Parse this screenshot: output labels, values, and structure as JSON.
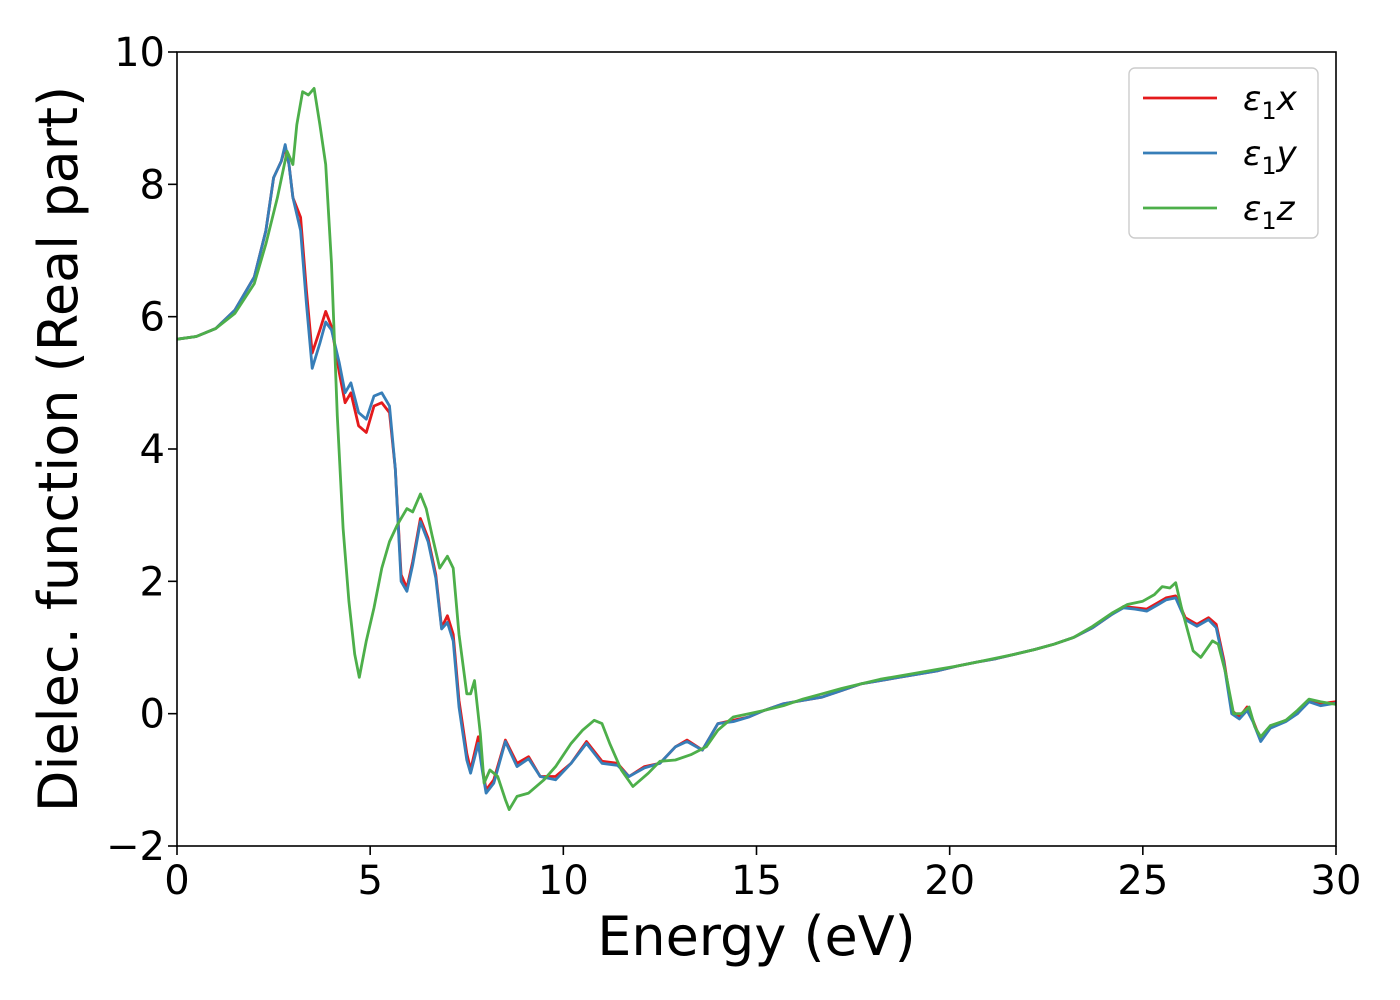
{
  "chart_data": {
    "type": "line",
    "title": "",
    "xlabel": "Energy (eV)",
    "ylabel": "Dielec. function (Real part)",
    "xlim": [
      0,
      30
    ],
    "ylim": [
      -2,
      10
    ],
    "xticks": [
      0,
      5,
      10,
      15,
      20,
      25,
      30
    ],
    "xtick_labels": [
      "0",
      "5",
      "10",
      "15",
      "20",
      "25",
      "30"
    ],
    "yticks": [
      -2,
      0,
      2,
      4,
      6,
      8,
      10
    ],
    "ytick_labels": [
      "−2",
      "0",
      "2",
      "4",
      "6",
      "8",
      "10"
    ],
    "grid": false,
    "legend_position": "top-right",
    "series": [
      {
        "name": "ε1x",
        "color": "#e41a1c",
        "points": [
          [
            0,
            5.66
          ],
          [
            0.5,
            5.7
          ],
          [
            1,
            5.82
          ],
          [
            1.5,
            6.1
          ],
          [
            2,
            6.6
          ],
          [
            2.3,
            7.3
          ],
          [
            2.5,
            8.1
          ],
          [
            2.7,
            8.35
          ],
          [
            2.8,
            8.55
          ],
          [
            2.9,
            8.3
          ],
          [
            3.0,
            7.8
          ],
          [
            3.2,
            7.5
          ],
          [
            3.35,
            6.4
          ],
          [
            3.5,
            5.45
          ],
          [
            3.7,
            5.8
          ],
          [
            3.85,
            6.08
          ],
          [
            4.0,
            5.85
          ],
          [
            4.2,
            5.15
          ],
          [
            4.35,
            4.7
          ],
          [
            4.5,
            4.85
          ],
          [
            4.7,
            4.35
          ],
          [
            4.9,
            4.25
          ],
          [
            5.1,
            4.65
          ],
          [
            5.3,
            4.7
          ],
          [
            5.5,
            4.55
          ],
          [
            5.65,
            3.7
          ],
          [
            5.8,
            2.1
          ],
          [
            5.95,
            1.9
          ],
          [
            6.1,
            2.3
          ],
          [
            6.3,
            2.95
          ],
          [
            6.5,
            2.65
          ],
          [
            6.7,
            2.1
          ],
          [
            6.85,
            1.3
          ],
          [
            7.0,
            1.48
          ],
          [
            7.15,
            1.2
          ],
          [
            7.3,
            0.2
          ],
          [
            7.5,
            -0.6
          ],
          [
            7.6,
            -0.85
          ],
          [
            7.8,
            -0.35
          ],
          [
            7.9,
            -0.8
          ],
          [
            8.0,
            -1.15
          ],
          [
            8.2,
            -1.0
          ],
          [
            8.5,
            -0.4
          ],
          [
            8.8,
            -0.75
          ],
          [
            9.1,
            -0.65
          ],
          [
            9.4,
            -0.95
          ],
          [
            9.8,
            -0.95
          ],
          [
            10.2,
            -0.75
          ],
          [
            10.6,
            -0.42
          ],
          [
            11.0,
            -0.72
          ],
          [
            11.4,
            -0.75
          ],
          [
            11.7,
            -0.95
          ],
          [
            12.1,
            -0.8
          ],
          [
            12.5,
            -0.75
          ],
          [
            12.9,
            -0.5
          ],
          [
            13.2,
            -0.4
          ],
          [
            13.6,
            -0.55
          ],
          [
            14.0,
            -0.15
          ],
          [
            14.4,
            -0.1
          ],
          [
            14.8,
            -0.05
          ],
          [
            15.2,
            0.05
          ],
          [
            15.7,
            0.15
          ],
          [
            16.2,
            0.2
          ],
          [
            16.7,
            0.25
          ],
          [
            17.2,
            0.35
          ],
          [
            17.7,
            0.45
          ],
          [
            18.2,
            0.5
          ],
          [
            18.7,
            0.55
          ],
          [
            19.2,
            0.6
          ],
          [
            19.7,
            0.65
          ],
          [
            20.2,
            0.72
          ],
          [
            20.7,
            0.78
          ],
          [
            21.2,
            0.83
          ],
          [
            21.7,
            0.9
          ],
          [
            22.2,
            0.97
          ],
          [
            22.7,
            1.05
          ],
          [
            23.2,
            1.15
          ],
          [
            23.7,
            1.3
          ],
          [
            24.2,
            1.5
          ],
          [
            24.5,
            1.62
          ],
          [
            24.8,
            1.6
          ],
          [
            25.1,
            1.58
          ],
          [
            25.4,
            1.68
          ],
          [
            25.6,
            1.75
          ],
          [
            25.85,
            1.78
          ],
          [
            26.1,
            1.45
          ],
          [
            26.4,
            1.35
          ],
          [
            26.7,
            1.45
          ],
          [
            26.9,
            1.35
          ],
          [
            27.1,
            0.8
          ],
          [
            27.3,
            0.05
          ],
          [
            27.5,
            -0.05
          ],
          [
            27.7,
            0.1
          ],
          [
            27.85,
            -0.1
          ],
          [
            28.05,
            -0.4
          ],
          [
            28.3,
            -0.2
          ],
          [
            28.7,
            -0.1
          ],
          [
            29.0,
            0.0
          ],
          [
            29.3,
            0.2
          ],
          [
            29.6,
            0.15
          ],
          [
            30,
            0.18
          ]
        ]
      },
      {
        "name": "ε1y",
        "color": "#377eb8",
        "points": [
          [
            0,
            5.66
          ],
          [
            0.5,
            5.7
          ],
          [
            1,
            5.82
          ],
          [
            1.5,
            6.1
          ],
          [
            2,
            6.6
          ],
          [
            2.3,
            7.3
          ],
          [
            2.5,
            8.1
          ],
          [
            2.7,
            8.35
          ],
          [
            2.8,
            8.6
          ],
          [
            2.9,
            8.3
          ],
          [
            3.0,
            7.8
          ],
          [
            3.2,
            7.3
          ],
          [
            3.35,
            6.2
          ],
          [
            3.5,
            5.22
          ],
          [
            3.7,
            5.6
          ],
          [
            3.85,
            5.92
          ],
          [
            4.0,
            5.8
          ],
          [
            4.2,
            5.3
          ],
          [
            4.35,
            4.85
          ],
          [
            4.5,
            5.0
          ],
          [
            4.7,
            4.55
          ],
          [
            4.9,
            4.45
          ],
          [
            5.1,
            4.8
          ],
          [
            5.3,
            4.85
          ],
          [
            5.5,
            4.65
          ],
          [
            5.65,
            3.7
          ],
          [
            5.8,
            2.0
          ],
          [
            5.95,
            1.85
          ],
          [
            6.1,
            2.25
          ],
          [
            6.3,
            2.9
          ],
          [
            6.5,
            2.6
          ],
          [
            6.7,
            2.05
          ],
          [
            6.85,
            1.28
          ],
          [
            7.0,
            1.38
          ],
          [
            7.15,
            1.1
          ],
          [
            7.3,
            0.1
          ],
          [
            7.5,
            -0.7
          ],
          [
            7.6,
            -0.9
          ],
          [
            7.8,
            -0.45
          ],
          [
            7.9,
            -0.85
          ],
          [
            8.0,
            -1.2
          ],
          [
            8.2,
            -1.05
          ],
          [
            8.5,
            -0.42
          ],
          [
            8.8,
            -0.8
          ],
          [
            9.1,
            -0.68
          ],
          [
            9.4,
            -0.95
          ],
          [
            9.8,
            -1.0
          ],
          [
            10.2,
            -0.75
          ],
          [
            10.6,
            -0.45
          ],
          [
            11.0,
            -0.75
          ],
          [
            11.4,
            -0.78
          ],
          [
            11.7,
            -0.95
          ],
          [
            12.1,
            -0.82
          ],
          [
            12.5,
            -0.75
          ],
          [
            12.9,
            -0.5
          ],
          [
            13.2,
            -0.42
          ],
          [
            13.6,
            -0.55
          ],
          [
            14.0,
            -0.15
          ],
          [
            14.4,
            -0.12
          ],
          [
            14.8,
            -0.05
          ],
          [
            15.2,
            0.05
          ],
          [
            15.7,
            0.15
          ],
          [
            16.2,
            0.2
          ],
          [
            16.7,
            0.25
          ],
          [
            17.2,
            0.35
          ],
          [
            17.7,
            0.45
          ],
          [
            18.2,
            0.5
          ],
          [
            18.7,
            0.55
          ],
          [
            19.2,
            0.6
          ],
          [
            19.7,
            0.65
          ],
          [
            20.2,
            0.72
          ],
          [
            20.7,
            0.78
          ],
          [
            21.2,
            0.83
          ],
          [
            21.7,
            0.9
          ],
          [
            22.2,
            0.97
          ],
          [
            22.7,
            1.05
          ],
          [
            23.2,
            1.15
          ],
          [
            23.7,
            1.3
          ],
          [
            24.2,
            1.5
          ],
          [
            24.5,
            1.6
          ],
          [
            24.8,
            1.58
          ],
          [
            25.1,
            1.55
          ],
          [
            25.4,
            1.65
          ],
          [
            25.6,
            1.72
          ],
          [
            25.85,
            1.75
          ],
          [
            26.1,
            1.42
          ],
          [
            26.4,
            1.32
          ],
          [
            26.7,
            1.42
          ],
          [
            26.9,
            1.3
          ],
          [
            27.1,
            0.75
          ],
          [
            27.3,
            0.0
          ],
          [
            27.5,
            -0.08
          ],
          [
            27.7,
            0.05
          ],
          [
            27.85,
            -0.12
          ],
          [
            28.05,
            -0.42
          ],
          [
            28.3,
            -0.22
          ],
          [
            28.7,
            -0.12
          ],
          [
            29.0,
            0.0
          ],
          [
            29.3,
            0.18
          ],
          [
            29.6,
            0.12
          ],
          [
            30,
            0.16
          ]
        ]
      },
      {
        "name": "ε1z",
        "color": "#4daf4a",
        "points": [
          [
            0,
            5.66
          ],
          [
            0.5,
            5.7
          ],
          [
            1,
            5.82
          ],
          [
            1.5,
            6.05
          ],
          [
            2,
            6.5
          ],
          [
            2.3,
            7.1
          ],
          [
            2.6,
            7.8
          ],
          [
            2.85,
            8.5
          ],
          [
            3.0,
            8.3
          ],
          [
            3.1,
            8.9
          ],
          [
            3.25,
            9.4
          ],
          [
            3.4,
            9.35
          ],
          [
            3.55,
            9.45
          ],
          [
            3.7,
            8.9
          ],
          [
            3.85,
            8.3
          ],
          [
            4.0,
            6.8
          ],
          [
            4.15,
            4.5
          ],
          [
            4.3,
            2.8
          ],
          [
            4.45,
            1.7
          ],
          [
            4.6,
            0.9
          ],
          [
            4.72,
            0.55
          ],
          [
            4.9,
            1.1
          ],
          [
            5.1,
            1.6
          ],
          [
            5.3,
            2.2
          ],
          [
            5.5,
            2.6
          ],
          [
            5.7,
            2.85
          ],
          [
            5.95,
            3.1
          ],
          [
            6.1,
            3.05
          ],
          [
            6.3,
            3.32
          ],
          [
            6.45,
            3.1
          ],
          [
            6.6,
            2.7
          ],
          [
            6.8,
            2.2
          ],
          [
            7.0,
            2.38
          ],
          [
            7.15,
            2.2
          ],
          [
            7.3,
            1.2
          ],
          [
            7.5,
            0.3
          ],
          [
            7.6,
            0.3
          ],
          [
            7.7,
            0.5
          ],
          [
            7.85,
            -0.3
          ],
          [
            7.95,
            -1.05
          ],
          [
            8.1,
            -0.85
          ],
          [
            8.3,
            -0.95
          ],
          [
            8.5,
            -1.3
          ],
          [
            8.6,
            -1.45
          ],
          [
            8.8,
            -1.25
          ],
          [
            9.1,
            -1.2
          ],
          [
            9.5,
            -1.0
          ],
          [
            9.8,
            -0.8
          ],
          [
            10.2,
            -0.45
          ],
          [
            10.5,
            -0.25
          ],
          [
            10.8,
            -0.1
          ],
          [
            11.0,
            -0.15
          ],
          [
            11.2,
            -0.45
          ],
          [
            11.5,
            -0.85
          ],
          [
            11.8,
            -1.1
          ],
          [
            12.2,
            -0.9
          ],
          [
            12.5,
            -0.72
          ],
          [
            12.9,
            -0.7
          ],
          [
            13.3,
            -0.62
          ],
          [
            13.7,
            -0.5
          ],
          [
            14.0,
            -0.25
          ],
          [
            14.4,
            -0.05
          ],
          [
            14.8,
            0.0
          ],
          [
            15.2,
            0.05
          ],
          [
            15.7,
            0.12
          ],
          [
            16.2,
            0.22
          ],
          [
            16.7,
            0.3
          ],
          [
            17.2,
            0.38
          ],
          [
            17.7,
            0.45
          ],
          [
            18.2,
            0.52
          ],
          [
            18.7,
            0.57
          ],
          [
            19.2,
            0.62
          ],
          [
            19.7,
            0.67
          ],
          [
            20.2,
            0.72
          ],
          [
            20.7,
            0.78
          ],
          [
            21.2,
            0.84
          ],
          [
            21.7,
            0.9
          ],
          [
            22.2,
            0.97
          ],
          [
            22.7,
            1.05
          ],
          [
            23.2,
            1.15
          ],
          [
            23.7,
            1.32
          ],
          [
            24.2,
            1.52
          ],
          [
            24.6,
            1.65
          ],
          [
            25.0,
            1.7
          ],
          [
            25.3,
            1.8
          ],
          [
            25.5,
            1.92
          ],
          [
            25.7,
            1.9
          ],
          [
            25.85,
            1.98
          ],
          [
            26.0,
            1.6
          ],
          [
            26.3,
            0.95
          ],
          [
            26.5,
            0.85
          ],
          [
            26.8,
            1.1
          ],
          [
            26.95,
            1.05
          ],
          [
            27.15,
            0.6
          ],
          [
            27.35,
            0.0
          ],
          [
            27.55,
            0.0
          ],
          [
            27.75,
            0.1
          ],
          [
            27.9,
            -0.2
          ],
          [
            28.05,
            -0.35
          ],
          [
            28.3,
            -0.18
          ],
          [
            28.7,
            -0.1
          ],
          [
            29.0,
            0.05
          ],
          [
            29.3,
            0.22
          ],
          [
            29.6,
            0.18
          ],
          [
            30,
            0.14
          ]
        ]
      }
    ]
  }
}
